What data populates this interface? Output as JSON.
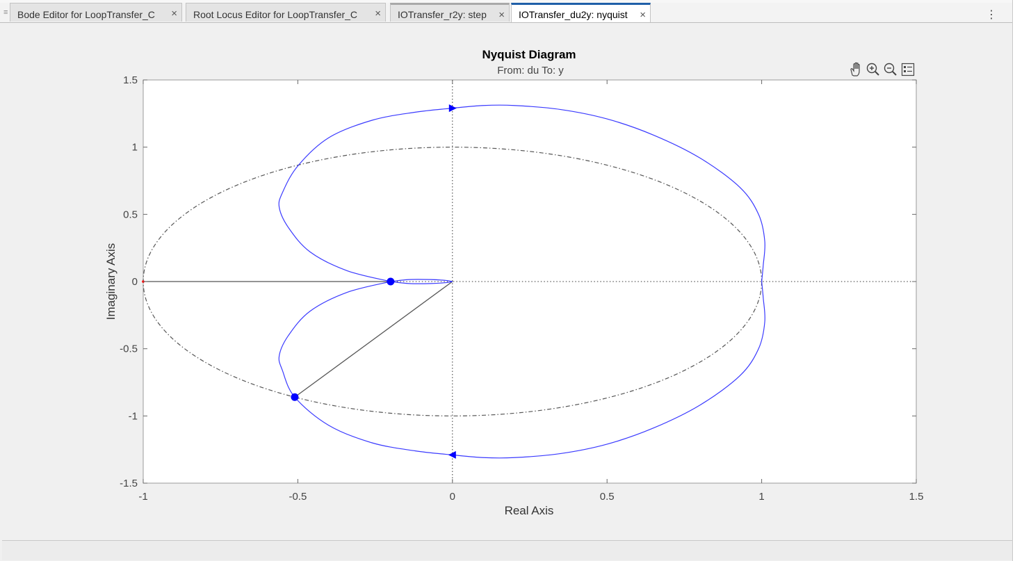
{
  "tabs": [
    {
      "label": "Bode Editor for LoopTransfer_C",
      "close": "×",
      "state": "normal"
    },
    {
      "label": "Root Locus Editor for LoopTransfer_C",
      "close": "×",
      "state": "normal"
    },
    {
      "label": "IOTransfer_r2y: step",
      "close": "×",
      "state": "recent"
    },
    {
      "label": "IOTransfer_du2y: nyquist",
      "close": "×",
      "state": "active"
    }
  ],
  "menu_icon": "more-vertical-icon",
  "axes_toolbar": [
    "pan-hand-icon",
    "zoom-in-icon",
    "zoom-out-icon",
    "legend-icon"
  ],
  "chart_data": {
    "type": "line",
    "title": "Nyquist Diagram",
    "subtitle": "From: du  To: y",
    "xlabel": "Real Axis",
    "ylabel": "Imaginary Axis",
    "xlim": [
      -1,
      1.5
    ],
    "ylim": [
      -1.5,
      1.5
    ],
    "xticks": [
      "-1",
      "-0.5",
      "0",
      "0.5",
      "1",
      "1.5"
    ],
    "yticks": [
      "1.5",
      "1",
      "0.5",
      "0",
      "-0.5",
      "-1",
      "-1.5"
    ],
    "xtick_values": [
      -1,
      -0.5,
      0,
      0.5,
      1,
      1.5
    ],
    "ytick_values": [
      1.5,
      1,
      0.5,
      0,
      -0.5,
      -1,
      -1.5
    ],
    "grid": false,
    "colors": {
      "curve": "#3a3aff",
      "marker": "#0000ff",
      "unit_circle": "#555555",
      "critical_point": "#ff0000"
    },
    "series": [
      {
        "style": "solid",
        "points": [
          [
            0,
            1.29
          ],
          [
            0.1,
            1.31
          ],
          [
            0.2,
            1.31
          ],
          [
            0.35,
            1.28
          ],
          [
            0.5,
            1.21
          ],
          [
            0.65,
            1.09
          ],
          [
            0.8,
            0.92
          ],
          [
            0.93,
            0.7
          ],
          [
            0.99,
            0.5
          ],
          [
            1.01,
            0.3
          ],
          [
            1.005,
            0.12
          ],
          [
            1.0,
            0
          ]
        ]
      },
      {
        "style": "solid",
        "points": [
          [
            1.0,
            0
          ],
          [
            1.005,
            -0.12
          ],
          [
            1.01,
            -0.3
          ],
          [
            0.99,
            -0.5
          ],
          [
            0.93,
            -0.7
          ],
          [
            0.8,
            -0.92
          ],
          [
            0.65,
            -1.09
          ],
          [
            0.5,
            -1.21
          ],
          [
            0.35,
            -1.28
          ],
          [
            0.2,
            -1.31
          ],
          [
            0.1,
            -1.31
          ],
          [
            0,
            -1.29
          ]
        ]
      },
      {
        "style": "solid",
        "points": [
          [
            0,
            1.29
          ],
          [
            -0.12,
            1.26
          ],
          [
            -0.26,
            1.2
          ],
          [
            -0.4,
            1.07
          ],
          [
            -0.5,
            0.86
          ],
          [
            -0.55,
            0.66
          ],
          [
            -0.56,
            0.55
          ],
          [
            -0.53,
            0.4
          ],
          [
            -0.46,
            0.22
          ],
          [
            -0.34,
            0.08
          ],
          [
            -0.2,
            0
          ]
        ]
      },
      {
        "style": "solid",
        "points": [
          [
            -0.2,
            0
          ],
          [
            -0.34,
            -0.08
          ],
          [
            -0.46,
            -0.22
          ],
          [
            -0.53,
            -0.4
          ],
          [
            -0.56,
            -0.55
          ],
          [
            -0.55,
            -0.66
          ],
          [
            -0.51,
            -0.86
          ],
          [
            -0.4,
            -1.07
          ],
          [
            -0.26,
            -1.2
          ],
          [
            -0.12,
            -1.26
          ],
          [
            0,
            -1.29
          ]
        ]
      },
      {
        "style": "solid",
        "points": [
          [
            -0.2,
            0
          ],
          [
            -0.14,
            0.015
          ],
          [
            -0.07,
            0.015
          ],
          [
            -0.02,
            0.008
          ],
          [
            0,
            0
          ]
        ]
      },
      {
        "style": "solid",
        "points": [
          [
            -0.2,
            0
          ],
          [
            -0.14,
            -0.015
          ],
          [
            -0.07,
            -0.015
          ],
          [
            -0.02,
            -0.008
          ],
          [
            0,
            0
          ]
        ]
      }
    ],
    "unit_circle": {
      "center": [
        0,
        0
      ],
      "radius": 1
    },
    "critical_point": [
      -1,
      0
    ],
    "markers": [
      [
        -0.2,
        0
      ],
      [
        -0.51,
        -0.86
      ]
    ],
    "direction_arrows": [
      {
        "point": [
          0,
          1.29
        ],
        "direction": "right"
      },
      {
        "point": [
          0,
          -1.29
        ],
        "direction": "left"
      }
    ],
    "margin_line": {
      "from": [
        0,
        0
      ],
      "to": [
        -0.51,
        -0.86
      ]
    },
    "real_axis_segment": {
      "from": [
        -1,
        0
      ],
      "to": [
        -0.2,
        0
      ]
    }
  }
}
